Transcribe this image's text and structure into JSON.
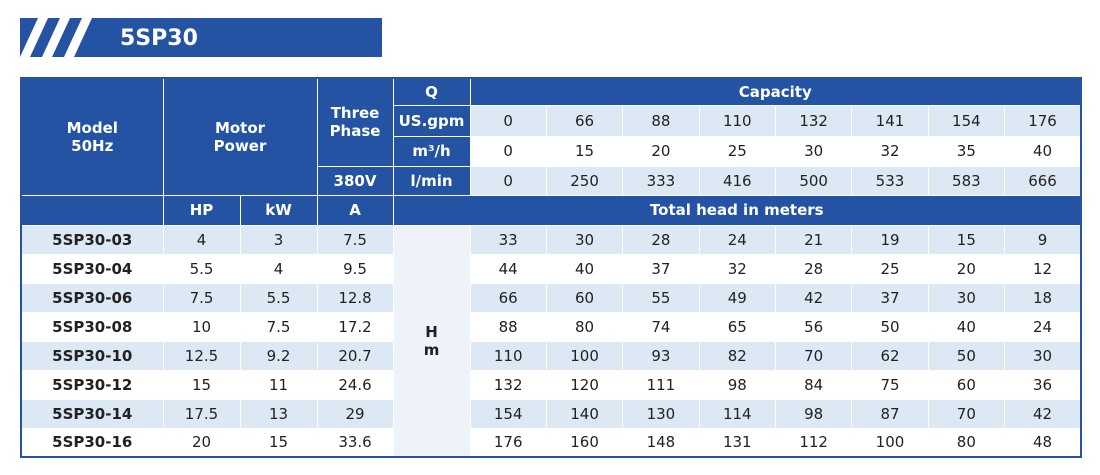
{
  "header": {
    "title": "5SP30"
  },
  "table": {
    "model_label": [
      "Model",
      "50Hz"
    ],
    "motor_label": [
      "Motor",
      "Power"
    ],
    "phase_label": [
      "Three",
      "Phase"
    ],
    "voltage": "380V",
    "q_label": "Q",
    "capacity_label": "Capacity",
    "flow_units": [
      {
        "unit": "US.gpm",
        "values": [
          0,
          66,
          88,
          110,
          132,
          141,
          154,
          176
        ]
      },
      {
        "unit": "m³/h",
        "values": [
          0,
          15,
          20,
          25,
          30,
          32,
          35,
          40
        ]
      },
      {
        "unit": "l/min",
        "values": [
          0,
          250,
          333,
          416,
          500,
          533,
          583,
          666
        ]
      }
    ],
    "sub_header": [
      "HP",
      "kW",
      "A"
    ],
    "head_label": "Total head in meters",
    "head_unit": [
      "H",
      "m"
    ],
    "rows": [
      {
        "model": "5SP30-03",
        "hp": 4,
        "kw": 3,
        "a": 7.5,
        "heads": [
          33,
          30,
          28,
          24,
          21,
          19,
          15,
          9
        ]
      },
      {
        "model": "5SP30-04",
        "hp": 5.5,
        "kw": 4,
        "a": 9.5,
        "heads": [
          44,
          40,
          37,
          32,
          28,
          25,
          20,
          12
        ]
      },
      {
        "model": "5SP30-06",
        "hp": 7.5,
        "kw": 5.5,
        "a": 12.8,
        "heads": [
          66,
          60,
          55,
          49,
          42,
          37,
          30,
          18
        ]
      },
      {
        "model": "5SP30-08",
        "hp": 10,
        "kw": 7.5,
        "a": 17.2,
        "heads": [
          88,
          80,
          74,
          65,
          56,
          50,
          40,
          24
        ]
      },
      {
        "model": "5SP30-10",
        "hp": 12.5,
        "kw": 9.2,
        "a": 20.7,
        "heads": [
          110,
          100,
          93,
          82,
          70,
          62,
          50,
          30
        ]
      },
      {
        "model": "5SP30-12",
        "hp": 15,
        "kw": 11,
        "a": 24.6,
        "heads": [
          132,
          120,
          111,
          98,
          84,
          75,
          60,
          36
        ]
      },
      {
        "model": "5SP30-14",
        "hp": 17.5,
        "kw": 13,
        "a": 29,
        "heads": [
          154,
          140,
          130,
          114,
          98,
          87,
          70,
          42
        ]
      },
      {
        "model": "5SP30-16",
        "hp": 20,
        "kw": 15,
        "a": 33.6,
        "heads": [
          176,
          160,
          148,
          131,
          112,
          100,
          80,
          48
        ]
      }
    ]
  }
}
